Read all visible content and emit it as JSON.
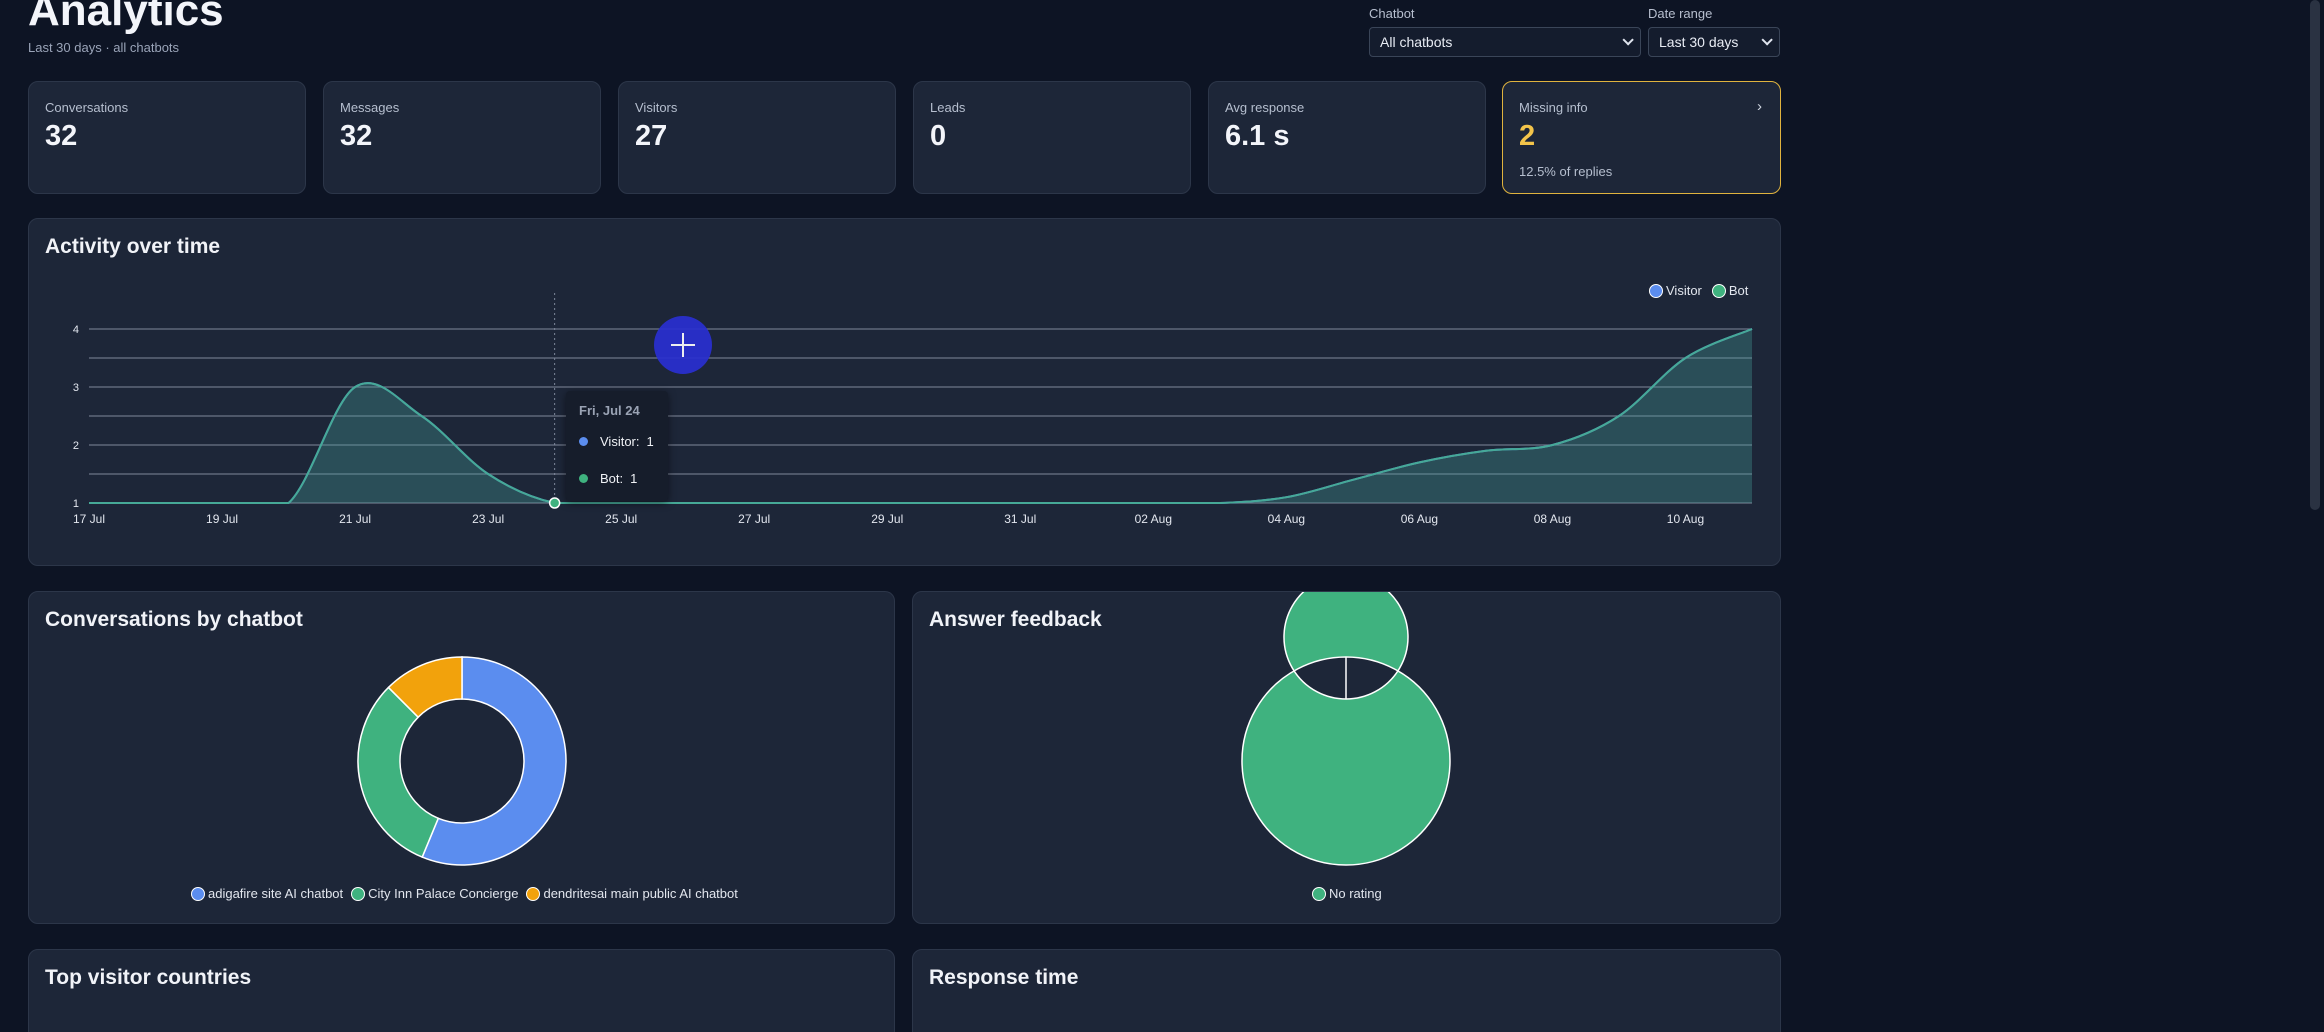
{
  "header": {
    "title": "Analytics",
    "subtitle": "Last 30 days · all chatbots"
  },
  "filters": {
    "chatbot_label": "Chatbot",
    "chatbot_value": "All chatbots",
    "range_label": "Date range",
    "range_value": "Last 30 days"
  },
  "stats": [
    {
      "label": "Conversations",
      "value": "32"
    },
    {
      "label": "Messages",
      "value": "32"
    },
    {
      "label": "Visitors",
      "value": "27"
    },
    {
      "label": "Leads",
      "value": "0"
    },
    {
      "label": "Avg response",
      "value": "6.1 s"
    },
    {
      "label": "Missing info",
      "value": "2",
      "note": "12.5% of replies",
      "arrow": "›"
    }
  ],
  "activity": {
    "title": "Activity over time",
    "tooltip": {
      "title": "Fri, Jul 24",
      "visitor_label": "Visitor:",
      "visitor_value": "1",
      "bot_label": "Bot:",
      "bot_value": "1"
    }
  },
  "conversations_by_chatbot": {
    "title": "Conversations by chatbot"
  },
  "answer_feedback": {
    "title": "Answer feedback"
  },
  "top_countries": {
    "title": "Top visitor countries"
  },
  "response_time": {
    "title": "Response time"
  },
  "colors": {
    "visitor": "#5b8def",
    "bot": "#3fb27f",
    "orange": "#f2a20c",
    "highlight": "#e0b33e"
  },
  "chart_data": [
    {
      "type": "area",
      "legend": "top-right",
      "grid": true,
      "ylim": [
        1,
        4
      ],
      "yticks": [
        1,
        2,
        3,
        4
      ],
      "xticks": [
        "17 Jul",
        "19 Jul",
        "21 Jul",
        "23 Jul",
        "25 Jul",
        "27 Jul",
        "29 Jul",
        "31 Jul",
        "02 Aug",
        "04 Aug",
        "06 Aug",
        "08 Aug",
        "10 Aug"
      ],
      "x": [
        "17 Jul",
        "18 Jul",
        "19 Jul",
        "20 Jul",
        "21 Jul",
        "22 Jul",
        "23 Jul",
        "24 Jul",
        "25 Jul",
        "26 Jul",
        "27 Jul",
        "28 Jul",
        "29 Jul",
        "30 Jul",
        "31 Jul",
        "01 Aug",
        "02 Aug",
        "03 Aug",
        "04 Aug",
        "05 Aug",
        "06 Aug",
        "07 Aug",
        "08 Aug",
        "09 Aug",
        "10 Aug",
        "11 Aug"
      ],
      "series": [
        {
          "name": "Visitor",
          "values": [
            1,
            1,
            1,
            1,
            3,
            2.5,
            1.5,
            1,
            1,
            1,
            1,
            1,
            1,
            1,
            1,
            1,
            1,
            1,
            1.1,
            1.4,
            1.7,
            1.9,
            2,
            2.5,
            3.5,
            4
          ]
        },
        {
          "name": "Bot",
          "values": [
            1,
            1,
            1,
            1,
            3,
            2.5,
            1.5,
            1,
            1,
            1,
            1,
            1,
            1,
            1,
            1,
            1,
            1,
            1,
            1.1,
            1.4,
            1.7,
            1.9,
            2,
            2.5,
            3.5,
            4
          ]
        }
      ]
    },
    {
      "type": "pie",
      "labels": [
        "adigafire site AI chatbot",
        "City Inn Palace Concierge",
        "dendritesai main public AI chatbot"
      ],
      "values": [
        18,
        10,
        4
      ]
    },
    {
      "type": "pie",
      "labels": [
        "No rating"
      ],
      "values": [
        1
      ]
    }
  ]
}
